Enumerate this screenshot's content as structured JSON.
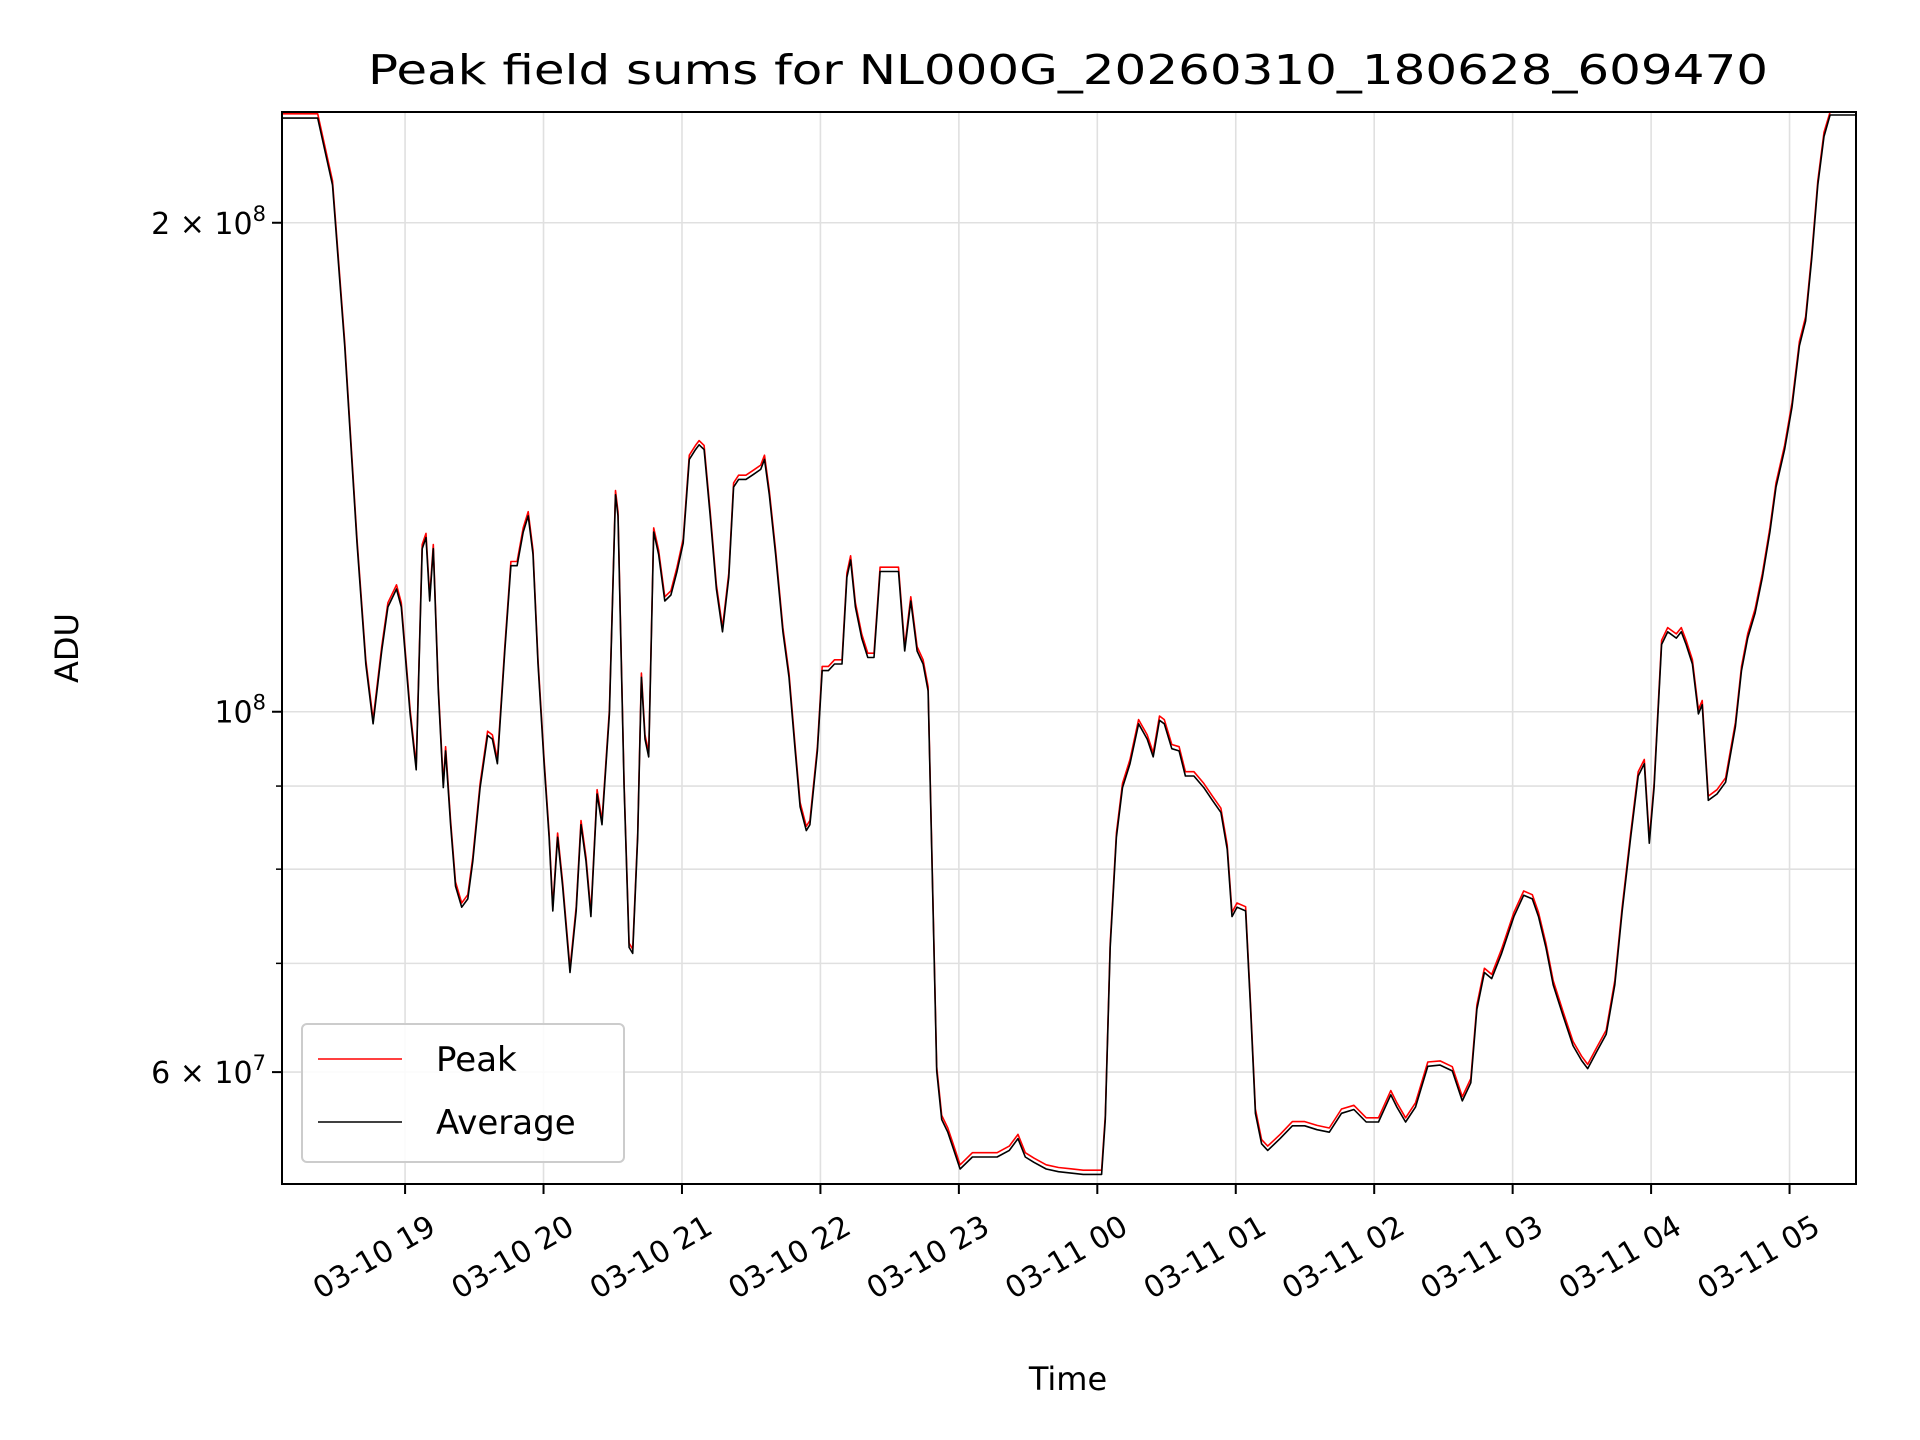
{
  "chart_data": {
    "type": "line",
    "title": "Peak field sums for NL000G_20260310_180628_609470",
    "xlabel": "Time",
    "ylabel": "ADU",
    "yscale": "log",
    "x_unit": "hours since 03-10 00:00",
    "y_unit": "ADU (values in millions)",
    "xlim": [
      18.111,
      29.48
    ],
    "ylim": [
      51.2,
      234
    ],
    "grid": true,
    "legend_position": "lower-left",
    "x_ticks": [
      {
        "value": 19,
        "label": "03-10 19"
      },
      {
        "value": 20,
        "label": "03-10 20"
      },
      {
        "value": 21,
        "label": "03-10 21"
      },
      {
        "value": 22,
        "label": "03-10 22"
      },
      {
        "value": 23,
        "label": "03-10 23"
      },
      {
        "value": 24,
        "label": "03-11 00"
      },
      {
        "value": 25,
        "label": "03-11 01"
      },
      {
        "value": 26,
        "label": "03-11 02"
      },
      {
        "value": 27,
        "label": "03-11 03"
      },
      {
        "value": 28,
        "label": "03-11 04"
      },
      {
        "value": 29,
        "label": "03-11 05"
      }
    ],
    "y_ticks": [
      {
        "value": 200,
        "mantissa": "2 × 10",
        "exp": "8"
      },
      {
        "value": 100,
        "mantissa": "10",
        "exp": "8"
      },
      {
        "value": 60,
        "mantissa": "6 × 10",
        "exp": "7"
      }
    ],
    "y_minor_ticks": [
      70,
      80,
      90
    ],
    "peak_to_average_ratio": 1.006,
    "series": [
      {
        "name": "Peak",
        "color": "#ff0000",
        "derived_from": "Average"
      },
      {
        "name": "Average",
        "color": "#000000",
        "x": [
          18.111,
          18.369,
          18.476,
          18.564,
          18.653,
          18.716,
          18.769,
          18.831,
          18.876,
          18.938,
          18.973,
          19.036,
          19.08,
          19.124,
          19.151,
          19.178,
          19.204,
          19.24,
          19.276,
          19.293,
          19.329,
          19.364,
          19.409,
          19.453,
          19.489,
          19.542,
          19.596,
          19.631,
          19.667,
          19.72,
          19.764,
          19.809,
          19.853,
          19.889,
          19.924,
          19.96,
          20.004,
          20.04,
          20.067,
          20.102,
          20.138,
          20.191,
          20.236,
          20.271,
          20.307,
          20.342,
          20.387,
          20.422,
          20.476,
          20.52,
          20.538,
          20.582,
          20.618,
          20.644,
          20.68,
          20.707,
          20.733,
          20.76,
          20.796,
          20.831,
          20.876,
          20.92,
          20.964,
          21.009,
          21.053,
          21.098,
          21.124,
          21.16,
          21.204,
          21.249,
          21.293,
          21.338,
          21.373,
          21.409,
          21.462,
          21.516,
          21.569,
          21.596,
          21.631,
          21.676,
          21.729,
          21.773,
          21.818,
          21.853,
          21.898,
          21.924,
          21.978,
          22.013,
          22.058,
          22.102,
          22.156,
          22.191,
          22.218,
          22.253,
          22.298,
          22.342,
          22.387,
          22.431,
          22.476,
          22.529,
          22.564,
          22.609,
          22.653,
          22.698,
          22.742,
          22.778,
          22.804,
          22.84,
          22.876,
          22.92,
          22.964,
          23.009,
          23.098,
          23.187,
          23.276,
          23.364,
          23.427,
          23.48,
          23.542,
          23.631,
          23.72,
          23.809,
          23.898,
          24.031,
          24.058,
          24.093,
          24.138,
          24.182,
          24.236,
          24.298,
          24.36,
          24.404,
          24.449,
          24.484,
          24.538,
          24.591,
          24.636,
          24.698,
          24.769,
          24.831,
          24.893,
          24.938,
          24.973,
          25.009,
          25.071,
          25.107,
          25.142,
          25.187,
          25.231,
          25.32,
          25.409,
          25.498,
          25.587,
          25.676,
          25.764,
          25.853,
          25.942,
          26.031,
          26.12,
          26.164,
          26.227,
          26.298,
          26.387,
          26.476,
          26.564,
          26.636,
          26.698,
          26.742,
          26.796,
          26.849,
          26.92,
          27.009,
          27.08,
          27.142,
          27.187,
          27.24,
          27.293,
          27.364,
          27.436,
          27.498,
          27.542,
          27.604,
          27.676,
          27.738,
          27.791,
          27.853,
          27.907,
          27.951,
          27.987,
          28.022,
          28.076,
          28.12,
          28.182,
          28.218,
          28.253,
          28.298,
          28.342,
          28.369,
          28.413,
          28.476,
          28.538,
          28.609,
          28.653,
          28.698,
          28.751,
          28.804,
          28.858,
          28.902,
          28.964,
          29.018,
          29.071,
          29.116,
          29.16,
          29.204,
          29.249,
          29.293,
          29.48
        ],
        "values": [
          232,
          232,
          211,
          168,
          127,
          107,
          98.3,
          109,
          116,
          119,
          116,
          99.7,
          92.1,
          126,
          128,
          117,
          126,
          103,
          89.8,
          94.6,
          85.2,
          78.1,
          75.8,
          76.7,
          80.9,
          89.8,
          96.7,
          96.2,
          92.9,
          109,
          123,
          123,
          129,
          132,
          125,
          107,
          92.9,
          83.7,
          75.4,
          83.7,
          78.1,
          69.1,
          75.4,
          85.2,
          80.9,
          74.8,
          89.0,
          85.2,
          99.7,
          136,
          132,
          89.8,
          71.6,
          71.0,
          83.7,
          105,
          96.2,
          93.8,
          129,
          125,
          117,
          118,
          122,
          127,
          143,
          145,
          146,
          145,
          132,
          119,
          112,
          121,
          137.5,
          139,
          139,
          140,
          141,
          143,
          136,
          125,
          112,
          105,
          94.6,
          87.4,
          84.5,
          85.2,
          94.6,
          106,
          106,
          107,
          107,
          121,
          124,
          116,
          111,
          108,
          108,
          122,
          122,
          122,
          122,
          109,
          117,
          109,
          107,
          103,
          82.3,
          60.1,
          56.1,
          55.1,
          53.7,
          52.3,
          53.2,
          53.2,
          53.2,
          53.7,
          54.6,
          53.2,
          52.8,
          52.3,
          52.1,
          52.0,
          51.9,
          51.9,
          56.1,
          71.6,
          83.7,
          89.8,
          92.9,
          98.3,
          96.2,
          93.8,
          98.8,
          98.3,
          94.9,
          94.6,
          91.3,
          91.3,
          89.8,
          88.2,
          86.7,
          82.3,
          74.8,
          75.8,
          75.4,
          65.6,
          56.6,
          54.2,
          53.7,
          54.6,
          55.6,
          55.6,
          55.3,
          55.1,
          56.6,
          56.9,
          55.9,
          55.9,
          58.1,
          57.1,
          55.9,
          57.1,
          60.5,
          60.6,
          60.1,
          57.6,
          59.1,
          65.6,
          69.1,
          68.5,
          71.0,
          74.8,
          77.1,
          76.7,
          74.8,
          71.6,
          67.9,
          65.0,
          62.3,
          61.0,
          60.3,
          61.7,
          63.3,
          67.9,
          75.4,
          83.7,
          91.3,
          92.9,
          83.0,
          89.8,
          110,
          112,
          111,
          112,
          110,
          107,
          99.7,
          101,
          88.2,
          89.0,
          90.5,
          97.9,
          106,
          111,
          115,
          121,
          129,
          137.5,
          145,
          154,
          168,
          174,
          190,
          211,
          226,
          233,
          233
        ]
      }
    ]
  }
}
